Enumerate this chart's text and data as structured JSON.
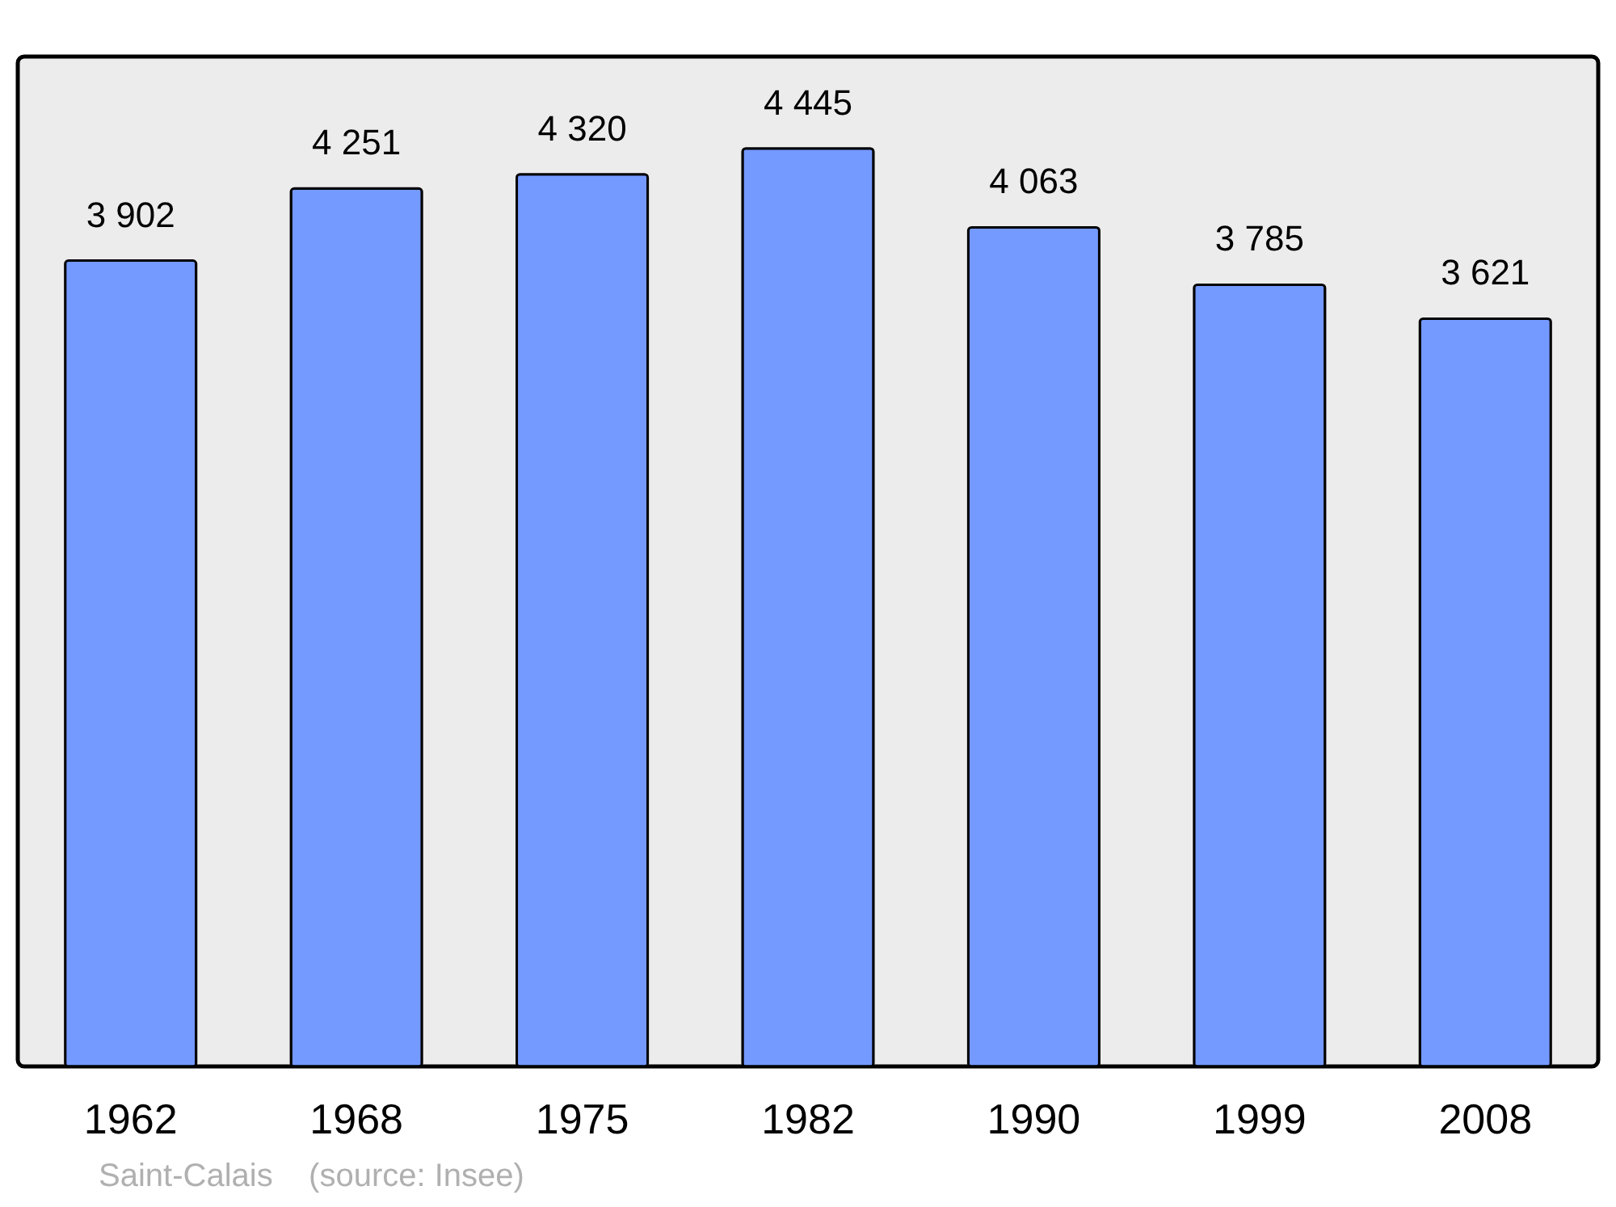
{
  "chart_data": {
    "type": "bar",
    "categories": [
      "1962",
      "1968",
      "1975",
      "1982",
      "1990",
      "1999",
      "2008"
    ],
    "values": [
      3902,
      4251,
      4320,
      4445,
      4063,
      3785,
      3621
    ],
    "value_labels": [
      "3 902",
      "4 251",
      "4 320",
      "4 445",
      "4 063",
      "3 785",
      "3 621"
    ],
    "color": "#7499ff",
    "ylim": [
      0,
      4890
    ],
    "annotations": [
      "Saint-Calais    (source: Insee)"
    ]
  }
}
